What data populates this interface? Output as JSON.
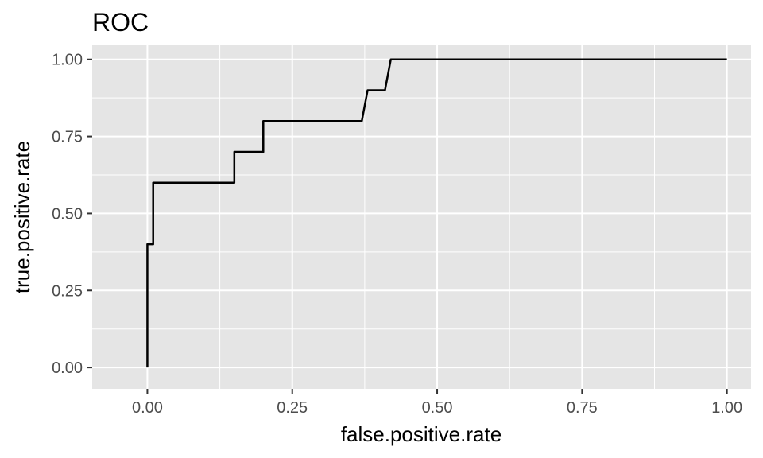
{
  "chart_data": {
    "type": "line",
    "title": "ROC",
    "xlabel": "false.positive.rate",
    "ylabel": "true.positive.rate",
    "xlim": [
      -0.0952,
      1.0416
    ],
    "ylim": [
      -0.0694,
      1.0458
    ],
    "x_ticks": [
      0.0,
      0.25,
      0.5,
      0.75,
      1.0
    ],
    "x_tick_labels": [
      "0.00",
      "0.25",
      "0.50",
      "0.75",
      "1.00"
    ],
    "y_ticks": [
      0.0,
      0.25,
      0.5,
      0.75,
      1.0
    ],
    "y_tick_labels": [
      "0.00",
      "0.25",
      "0.50",
      "0.75",
      "1.00"
    ],
    "x_minor_ticks": [
      0.125,
      0.375,
      0.625,
      0.875
    ],
    "y_minor_ticks": [
      0.125,
      0.375,
      0.625,
      0.875
    ],
    "grid": true,
    "legend": "none",
    "colors": {
      "panel": "#e5e5e5",
      "grid": "#ffffff",
      "line": "#000000",
      "tick": "#333333"
    },
    "series": [
      {
        "x": [
          0.0,
          0.0,
          0.0,
          0.01,
          0.01,
          0.08,
          0.15,
          0.15,
          0.2,
          0.2,
          0.37,
          0.38,
          0.39,
          0.41,
          0.42,
          1.0
        ],
        "y": [
          0.0,
          0.4,
          0.4,
          0.4,
          0.6,
          0.6,
          0.6,
          0.7,
          0.7,
          0.8,
          0.8,
          0.9,
          0.9,
          0.9,
          1.0,
          1.0
        ]
      }
    ]
  }
}
